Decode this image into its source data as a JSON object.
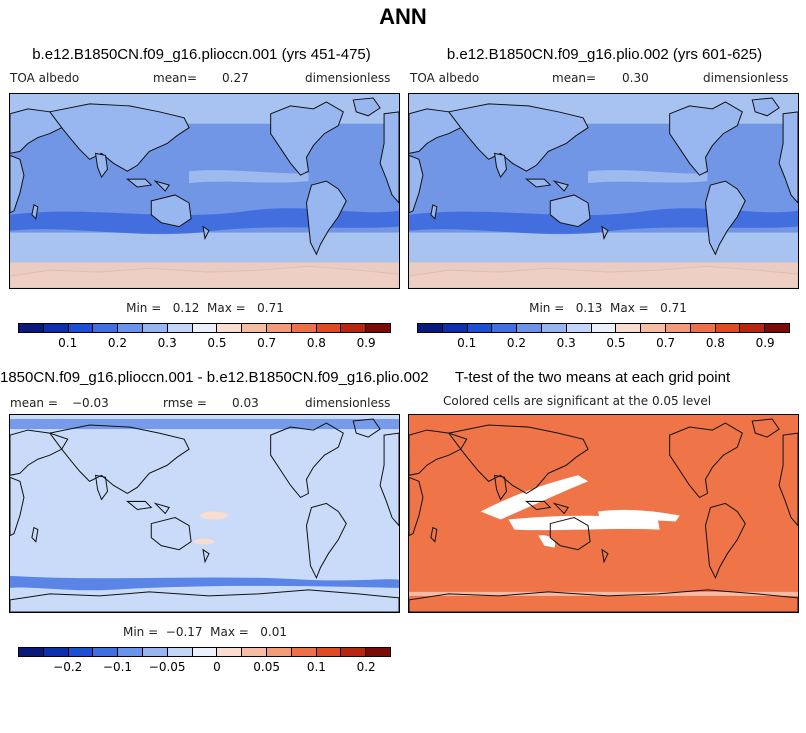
{
  "figure_title": "ANN",
  "panels": {
    "p1": {
      "title": "b.e12.B1850CN.f09_g16.plioccn.001 (yrs 451-475)",
      "variable": "TOA albedo",
      "mean_label": "mean=",
      "mean_value": "0.27",
      "units": "dimensionless",
      "minmax": "Min =   0.12  Max =   0.71"
    },
    "p2": {
      "title": "b.e12.B1850CN.f09_g16.plio.002 (yrs 601-625)",
      "variable": "TOA albedo",
      "mean_label": "mean=",
      "mean_value": "0.30",
      "units": "dimensionless",
      "minmax": "Min =   0.13  Max =   0.71"
    },
    "p3": {
      "title": "1850CN.f09_g16.plioccn.001 - b.e12.B1850CN.f09_g16.plio.002",
      "mean_label": "mean =",
      "mean_value": "−0.03",
      "rmse_label": "rmse =",
      "rmse_value": "0.03",
      "units": "dimensionless",
      "minmax": "Min =  −0.17  Max =   0.01"
    },
    "p4": {
      "title": "T-test of the two means at each grid point",
      "subtitle": "Colored cells are significant at the 0.05 level"
    }
  },
  "colorbar_abs": {
    "colors": [
      "#0a1a7a",
      "#0c2fae",
      "#1a4fd6",
      "#3f6fe0",
      "#6a93eb",
      "#97b6f1",
      "#c3d6f8",
      "#eaf0fc",
      "#f9ddd0",
      "#f6bda3",
      "#f39a78",
      "#ee6f48",
      "#e04a22",
      "#b82510",
      "#7a0b06"
    ],
    "tick_labels": [
      "0.1",
      "0.2",
      "0.3",
      "0.5",
      "0.7",
      "0.8",
      "0.9"
    ]
  },
  "colorbar_diff": {
    "colors": [
      "#0a1a7a",
      "#0c2fae",
      "#1a4fd6",
      "#3f6fe0",
      "#6a93eb",
      "#97b6f1",
      "#c3d6f8",
      "#eaf0fc",
      "#f9ddd0",
      "#f6bda3",
      "#f39a78",
      "#ee6f48",
      "#e04a22",
      "#b82510",
      "#7a0b06"
    ],
    "tick_labels": [
      "−0.2",
      "−0.1",
      "−0.05",
      "0",
      "0.05",
      "0.1",
      "0.2"
    ]
  },
  "map_colors": {
    "ocean_base": "#7196e6",
    "ocean_light": "#a9c3f0",
    "land": "#98b6ef",
    "band_dark": "#3b67dc",
    "ice": "#f7d2be",
    "diff_base": "#c9dbf8",
    "diff_dark": "#5a85e6",
    "ttest": "#ef7548"
  }
}
